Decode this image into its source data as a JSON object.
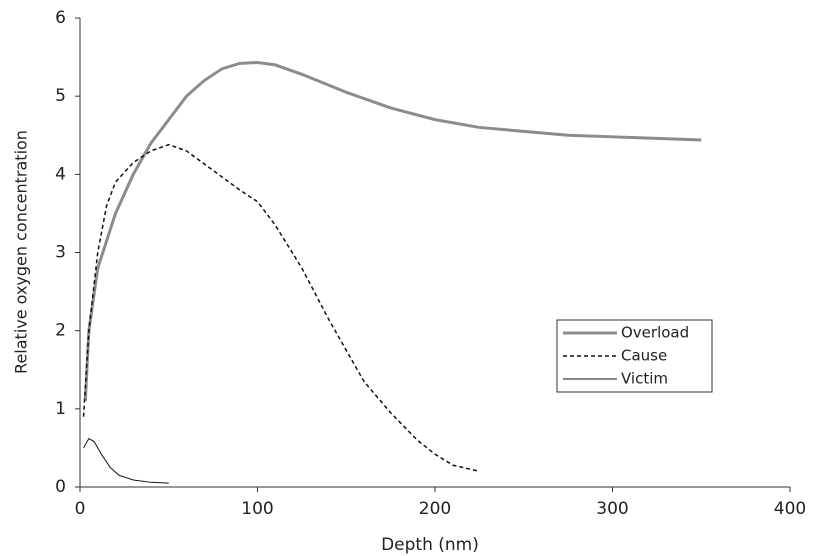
{
  "chart_data": {
    "type": "line",
    "x_label": "Depth (nm)",
    "y_label": "Relative oxygen concentration",
    "xlim": [
      0,
      400
    ],
    "xticks": [
      0,
      100,
      200,
      300,
      400
    ],
    "ylim": [
      0,
      6
    ],
    "yticks": [
      0,
      1,
      2,
      3,
      4,
      5,
      6
    ],
    "grid": false,
    "legend": "center right",
    "series": [
      {
        "name": "Overload",
        "color": "#8c8c8c",
        "width": 3,
        "dash": "solid",
        "x": [
          3,
          5,
          10,
          20,
          30,
          40,
          50,
          60,
          70,
          80,
          90,
          100,
          110,
          125,
          150,
          175,
          200,
          225,
          250,
          275,
          300,
          325,
          350
        ],
        "values": [
          1.1,
          2.0,
          2.8,
          3.5,
          4.0,
          4.4,
          4.7,
          5.0,
          5.2,
          5.35,
          5.42,
          5.43,
          5.4,
          5.28,
          5.05,
          4.85,
          4.7,
          4.6,
          4.55,
          4.5,
          4.48,
          4.46,
          4.44
        ]
      },
      {
        "name": "Cause",
        "color": "#111111",
        "width": 1.5,
        "dash": "dotted",
        "x": [
          2,
          5,
          10,
          15,
          20,
          30,
          40,
          50,
          60,
          75,
          90,
          100,
          110,
          125,
          140,
          150,
          160,
          175,
          190,
          200,
          210,
          225
        ],
        "values": [
          0.9,
          2.0,
          3.0,
          3.6,
          3.9,
          4.15,
          4.3,
          4.38,
          4.3,
          4.05,
          3.8,
          3.65,
          3.35,
          2.8,
          2.15,
          1.75,
          1.35,
          0.95,
          0.6,
          0.42,
          0.28,
          0.2
        ]
      },
      {
        "name": "Victim",
        "color": "#111111",
        "width": 1,
        "dash": "solid",
        "x": [
          2,
          5,
          8,
          12,
          17,
          22,
          30,
          40,
          50
        ],
        "values": [
          0.5,
          0.62,
          0.58,
          0.42,
          0.25,
          0.15,
          0.09,
          0.06,
          0.05
        ]
      }
    ]
  }
}
